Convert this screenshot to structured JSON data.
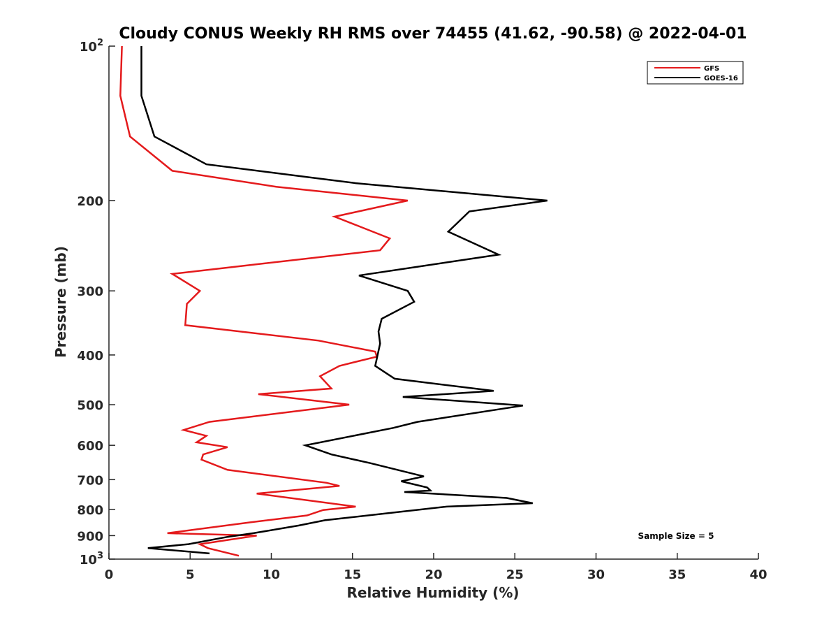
{
  "chart_data": {
    "type": "line",
    "title": "Cloudy CONUS Weekly RH RMS over 74455 (41.62, -90.58) @ 2022-04-01",
    "xlabel": "Relative Humidity (%)",
    "ylabel": "Pressure (mb)",
    "xlim": [
      0,
      40
    ],
    "ylim": [
      100,
      1000
    ],
    "y_scale": "log",
    "y_reversed": true,
    "grid": false,
    "legend_position": "top-right",
    "x_ticks": [
      0,
      5,
      10,
      15,
      20,
      25,
      30,
      35,
      40
    ],
    "y_ticks": [
      {
        "value": 100,
        "label": "10",
        "sup": "2"
      },
      {
        "value": 200,
        "label": "200",
        "sup": ""
      },
      {
        "value": 300,
        "label": "300",
        "sup": ""
      },
      {
        "value": 400,
        "label": "400",
        "sup": ""
      },
      {
        "value": 500,
        "label": "500",
        "sup": ""
      },
      {
        "value": 600,
        "label": "600",
        "sup": ""
      },
      {
        "value": 700,
        "label": "700",
        "sup": ""
      },
      {
        "value": 800,
        "label": "800",
        "sup": ""
      },
      {
        "value": 900,
        "label": "900",
        "sup": ""
      },
      {
        "value": 1000,
        "label": "10",
        "sup": "3"
      }
    ],
    "annotation": "Sample Size = 5",
    "series": [
      {
        "name": "GFS",
        "color": "#e41a1c",
        "points": [
          [
            0.8,
            100
          ],
          [
            0.7,
            125
          ],
          [
            1.3,
            150
          ],
          [
            3.9,
            175
          ],
          [
            10.3,
            188
          ],
          [
            18.4,
            200
          ],
          [
            13.9,
            215
          ],
          [
            17.3,
            237
          ],
          [
            16.7,
            250
          ],
          [
            3.9,
            278
          ],
          [
            5.6,
            300
          ],
          [
            4.8,
            318
          ],
          [
            4.7,
            350
          ],
          [
            12.9,
            375
          ],
          [
            16.4,
            394
          ],
          [
            16.5,
            403
          ],
          [
            14.2,
            420
          ],
          [
            13.0,
            440
          ],
          [
            13.7,
            465
          ],
          [
            9.2,
            477
          ],
          [
            14.8,
            500
          ],
          [
            6.2,
            540
          ],
          [
            4.6,
            560
          ],
          [
            6.0,
            575
          ],
          [
            5.4,
            592
          ],
          [
            7.3,
            605
          ],
          [
            5.8,
            625
          ],
          [
            5.7,
            640
          ],
          [
            7.3,
            670
          ],
          [
            13.4,
            710
          ],
          [
            14.2,
            720
          ],
          [
            9.1,
            745
          ],
          [
            15.2,
            790
          ],
          [
            13.2,
            802
          ],
          [
            12.2,
            822
          ],
          [
            8.7,
            848
          ],
          [
            3.6,
            890
          ],
          [
            9.1,
            900
          ],
          [
            5.6,
            935
          ],
          [
            6.1,
            952
          ],
          [
            8.0,
            985
          ]
        ]
      },
      {
        "name": "GOES-16",
        "color": "#000000",
        "points": [
          [
            2.0,
            100
          ],
          [
            2.0,
            125
          ],
          [
            2.8,
            150
          ],
          [
            6.0,
            170
          ],
          [
            15.2,
            185
          ],
          [
            27.0,
            200
          ],
          [
            22.2,
            210
          ],
          [
            20.9,
            230
          ],
          [
            24.0,
            255
          ],
          [
            15.4,
            280
          ],
          [
            18.4,
            300
          ],
          [
            18.8,
            315
          ],
          [
            16.8,
            340
          ],
          [
            16.6,
            360
          ],
          [
            16.7,
            380
          ],
          [
            16.4,
            420
          ],
          [
            17.6,
            445
          ],
          [
            23.7,
            470
          ],
          [
            18.1,
            483
          ],
          [
            25.5,
            502
          ],
          [
            19.0,
            540
          ],
          [
            17.5,
            555
          ],
          [
            12.1,
            600
          ],
          [
            13.7,
            625
          ],
          [
            16.1,
            650
          ],
          [
            19.4,
            690
          ],
          [
            18.0,
            705
          ],
          [
            19.6,
            725
          ],
          [
            19.8,
            735
          ],
          [
            18.2,
            740
          ],
          [
            24.5,
            760
          ],
          [
            26.1,
            778
          ],
          [
            20.8,
            790
          ],
          [
            13.3,
            840
          ],
          [
            11.7,
            860
          ],
          [
            8.9,
            890
          ],
          [
            7.3,
            905
          ],
          [
            4.9,
            935
          ],
          [
            2.4,
            952
          ],
          [
            6.2,
            975
          ]
        ]
      }
    ]
  }
}
